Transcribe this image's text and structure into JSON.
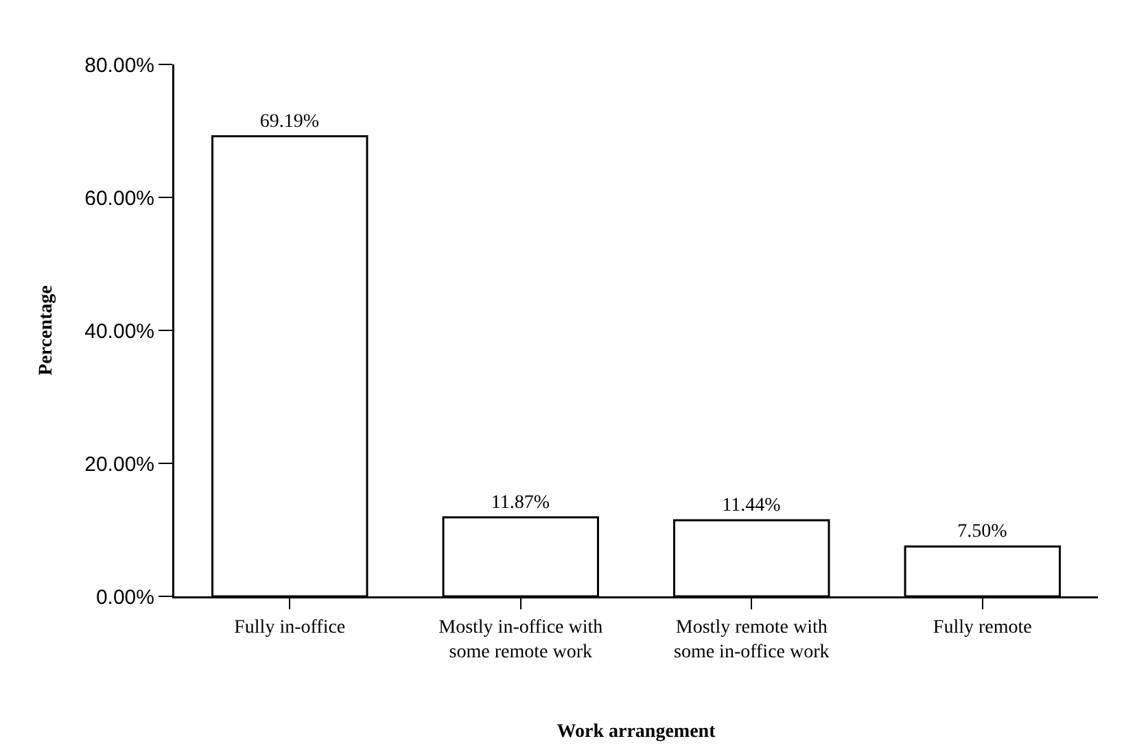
{
  "chart_data": {
    "type": "bar",
    "xlabel": "Work arrangement",
    "ylabel": "Percentage",
    "categories": [
      "Fully in-office",
      "Mostly in-office with some remote work",
      "Mostly remote with some in-office work",
      "Fully remote"
    ],
    "values": [
      69.19,
      11.87,
      11.44,
      7.5
    ],
    "value_labels": [
      "69.19%",
      "11.87%",
      "11.44%",
      "7.50%"
    ],
    "color": "#ffffff",
    "ylim": [
      0,
      80
    ],
    "yticks": [
      {
        "value": 0,
        "label": "0.00%"
      },
      {
        "value": 20,
        "label": "20.00%"
      },
      {
        "value": 40,
        "label": "40.00%"
      },
      {
        "value": 60,
        "label": "60.00%"
      },
      {
        "value": 80,
        "label": "80.00%"
      }
    ],
    "grid": false
  }
}
